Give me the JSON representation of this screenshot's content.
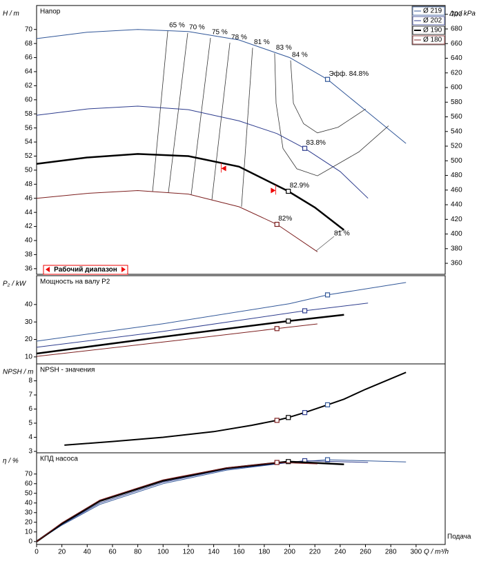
{
  "chart_data": [
    {
      "type": "line",
      "title": "Напор",
      "y_label": "H / m",
      "y2_label": "Δp / kPa",
      "xlim": [
        0,
        323
      ],
      "ylim": [
        35.2,
        73.4
      ],
      "yticks": [
        36,
        38,
        40,
        42,
        44,
        46,
        48,
        50,
        52,
        54,
        56,
        58,
        60,
        62,
        64,
        66,
        68,
        70
      ],
      "y2lim": [
        345,
        712
      ],
      "y2ticks": [
        360,
        380,
        400,
        420,
        440,
        460,
        480,
        500,
        520,
        540,
        560,
        580,
        600,
        620,
        640,
        660,
        680,
        700
      ],
      "legend": "top-right",
      "series": [
        {
          "name": "Ø 219",
          "color": "#2f5597",
          "width": 1,
          "x": [
            0,
            40,
            80,
            120,
            160,
            200,
            230,
            260,
            292
          ],
          "values": [
            68.7,
            69.6,
            70,
            69.7,
            68.5,
            66,
            62.9,
            58.5,
            53.8
          ],
          "duty_x": 230,
          "duty_value": 62.9,
          "duty_label": "Эфф. 84.8%"
        },
        {
          "name": "Ø 202",
          "color": "#2b3a8c",
          "width": 1,
          "x": [
            0,
            40,
            80,
            120,
            160,
            190,
            212,
            240,
            262
          ],
          "values": [
            57.8,
            58.7,
            59.1,
            58.6,
            57,
            55.2,
            53.1,
            49.8,
            46
          ],
          "duty_x": 212,
          "duty_value": 53.1,
          "duty_label": "83.8%"
        },
        {
          "name": "Ø 190",
          "color": "#000000",
          "width": 2.5,
          "x": [
            0,
            40,
            80,
            120,
            160,
            199,
            220,
            243
          ],
          "values": [
            50.9,
            51.8,
            52.3,
            52,
            50.5,
            47,
            44.7,
            41.5
          ],
          "duty_x": 199,
          "duty_value": 47,
          "duty_label": "82.9%"
        },
        {
          "name": "Ø 180",
          "color": "#7b1c1c",
          "width": 1,
          "x": [
            0,
            40,
            80,
            120,
            160,
            190,
            222
          ],
          "values": [
            46,
            46.7,
            47.1,
            46.6,
            44.8,
            42.3,
            38.4
          ],
          "duty_x": 190,
          "duty_value": 42.3,
          "duty_label": "82%"
        }
      ],
      "iso_lines": [
        {
          "label": "65 %",
          "x": [
            103.7,
            91.7
          ],
          "values": [
            69.8,
            47
          ]
        },
        {
          "label": "70 %",
          "x": [
            119.5,
            104.2
          ],
          "values": [
            69.5,
            46.8
          ]
        },
        {
          "label": "75 %",
          "x": [
            137.5,
            122.2
          ],
          "values": [
            68.8,
            46.5
          ]
        },
        {
          "label": "78 %",
          "x": [
            152.8,
            138.6
          ],
          "values": [
            68.1,
            45.8
          ]
        },
        {
          "label": "81 %",
          "x": [
            170.8,
            162
          ],
          "values": [
            67.4,
            44.8
          ]
        },
        {
          "label": "83 %",
          "x": [
            188.2,
            189.3,
            194.8,
            205.7,
            222,
            254.8,
            278.2
          ],
          "values": [
            66.6,
            59.5,
            53.1,
            50.2,
            49.2,
            52.6,
            56.3
          ]
        },
        {
          "label": "84 %",
          "x": [
            200.8,
            203,
            211.1,
            222,
            238.4,
            260.2
          ],
          "values": [
            65.6,
            59.5,
            56.6,
            55.3,
            56.1,
            58.7
          ]
        }
      ],
      "end_label": "81 %",
      "operating_range": {
        "label": "Рабочий диапазон",
        "x": [
          146,
          189
        ]
      }
    },
    {
      "type": "line",
      "title": "Мощность на валу P2",
      "y_label": "P₂ / kW",
      "xlim": [
        0,
        323
      ],
      "ylim": [
        6,
        56.5
      ],
      "yticks": [
        10,
        20,
        30,
        40
      ],
      "series": [
        {
          "color": "#2f5597",
          "width": 1,
          "x": [
            0,
            100,
            200,
            230,
            292
          ],
          "values": [
            19,
            29,
            40.5,
            45.5,
            52.6
          ],
          "duty_x": 230,
          "duty_value": 45.5
        },
        {
          "color": "#2b3a8c",
          "width": 1,
          "x": [
            0,
            100,
            212,
            262
          ],
          "values": [
            15.5,
            24.6,
            36.4,
            40.8
          ],
          "duty_x": 212,
          "duty_value": 36.4
        },
        {
          "color": "#000000",
          "width": 2.5,
          "x": [
            0,
            100,
            199,
            243
          ],
          "values": [
            11.9,
            21.5,
            30.5,
            34.1
          ],
          "duty_x": 199,
          "duty_value": 30.5
        },
        {
          "color": "#7b1c1c",
          "width": 1,
          "x": [
            0,
            100,
            190,
            222
          ],
          "values": [
            10.3,
            18.5,
            26.2,
            28.9
          ],
          "duty_x": 190,
          "duty_value": 26.2
        }
      ]
    },
    {
      "type": "line",
      "title": "NPSH - значения",
      "y_label": "NPSH / m",
      "xlim": [
        0,
        323
      ],
      "ylim": [
        2.9,
        9.2
      ],
      "yticks": [
        3,
        4,
        5,
        6,
        7,
        8
      ],
      "series": [
        {
          "color": "#000000",
          "width": 2,
          "x": [
            22,
            60,
            100,
            140,
            170,
            190,
            199,
            212,
            230,
            243,
            260,
            292
          ],
          "values": [
            3.44,
            3.7,
            4,
            4.4,
            4.85,
            5.2,
            5.4,
            5.75,
            6.3,
            6.7,
            7.4,
            8.6
          ]
        }
      ],
      "duty_points": [
        {
          "color": "#7b1c1c",
          "x": 190,
          "value": 5.2
        },
        {
          "color": "#000000",
          "x": 199,
          "value": 5.4
        },
        {
          "color": "#2b3a8c",
          "x": 212,
          "value": 5.75
        },
        {
          "color": "#2f5597",
          "x": 230,
          "value": 6.3
        }
      ]
    },
    {
      "type": "line",
      "title": "КПД насоса",
      "y_label": "η / %",
      "xlim": [
        0,
        323
      ],
      "ylim": [
        -3,
        92
      ],
      "yticks": [
        0,
        10,
        20,
        30,
        40,
        50,
        60,
        70
      ],
      "xticks": [
        0,
        20,
        40,
        60,
        80,
        100,
        120,
        140,
        160,
        180,
        200,
        220,
        240,
        260,
        280,
        300
      ],
      "x_label": "Q / m³/h",
      "x_caption": "Подача",
      "series": [
        {
          "color": "#2f5597",
          "width": 1,
          "x": [
            0,
            20,
            50,
            100,
            150,
            200,
            230,
            292
          ],
          "values": [
            0,
            17,
            38.5,
            60,
            74,
            82,
            84.8,
            82.5
          ],
          "duty_x": 230,
          "duty_value": 84.8
        },
        {
          "color": "#2b3a8c",
          "width": 1,
          "x": [
            0,
            20,
            50,
            100,
            150,
            212,
            262
          ],
          "values": [
            0,
            17.8,
            40,
            61.5,
            75,
            83.8,
            82
          ],
          "duty_x": 212,
          "duty_value": 83.8
        },
        {
          "color": "#000000",
          "width": 2.5,
          "x": [
            0,
            20,
            50,
            100,
            150,
            199,
            243
          ],
          "values": [
            0,
            18.6,
            42,
            63,
            76,
            82.9,
            80
          ],
          "duty_x": 199,
          "duty_value": 82.9
        },
        {
          "color": "#7b1c1c",
          "width": 1,
          "x": [
            0,
            20,
            50,
            100,
            150,
            190,
            222
          ],
          "values": [
            0,
            19.5,
            43,
            64,
            76.5,
            82,
            80.5
          ],
          "duty_x": 190,
          "duty_value": 82
        }
      ]
    }
  ]
}
